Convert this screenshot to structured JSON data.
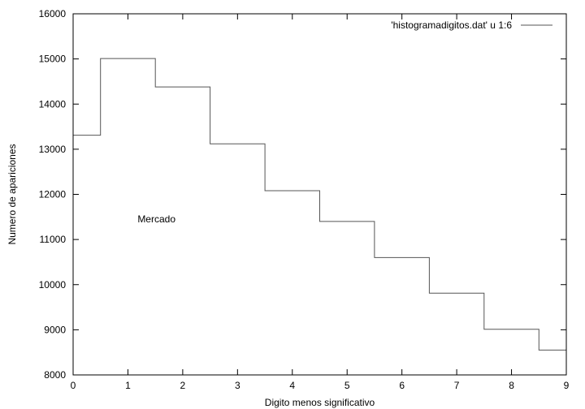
{
  "chart_data": {
    "type": "line",
    "style": "histogram-steps",
    "x": [
      0,
      1,
      2,
      3,
      4,
      5,
      6,
      7,
      8,
      9
    ],
    "series": [
      {
        "name": "'histogramadigitos.dat' u 1:6",
        "values": [
          13310,
          15010,
          14380,
          13120,
          12080,
          11400,
          10600,
          9810,
          9010,
          8550
        ],
        "color": "#555555"
      }
    ],
    "xlabel": "Digito menos significativo",
    "ylabel": "Numero de apariciones",
    "xlim": [
      0,
      9
    ],
    "ylim": [
      8000,
      16000
    ],
    "xticks": [
      0,
      1,
      2,
      3,
      4,
      5,
      6,
      7,
      8,
      9
    ],
    "yticks": [
      8000,
      9000,
      10000,
      11000,
      12000,
      13000,
      14000,
      15000,
      16000
    ],
    "annotation": "Mercado",
    "annotation_position": {
      "x": 0.85,
      "y": 11450
    },
    "legend_position": "top-right",
    "grid": false
  }
}
